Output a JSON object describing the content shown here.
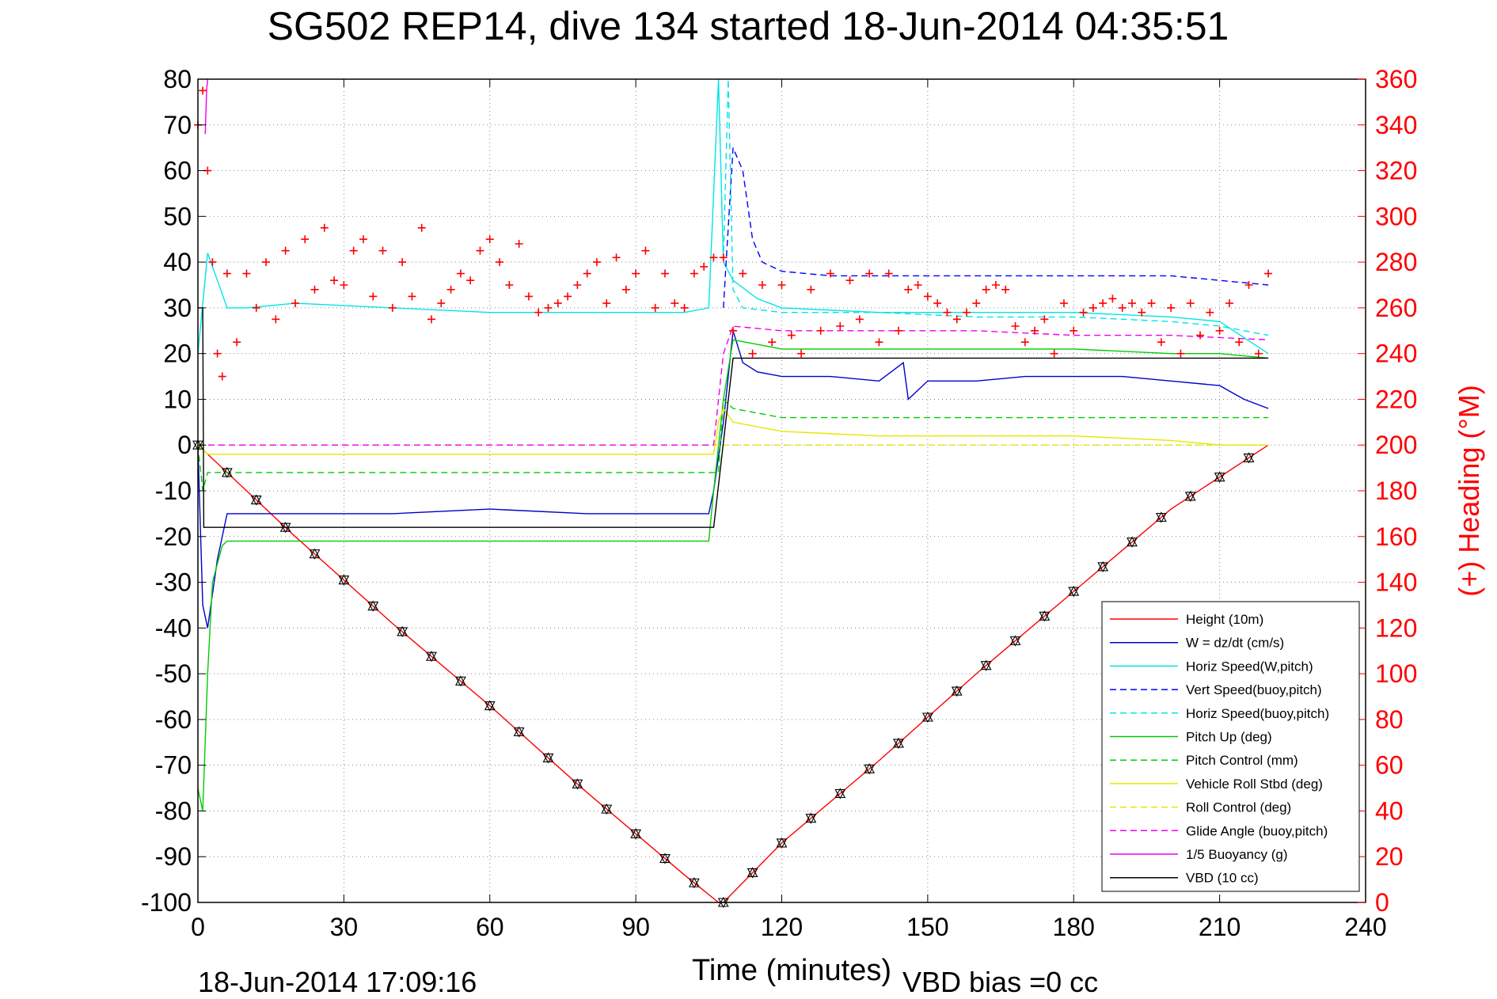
{
  "chart_data": {
    "type": "line",
    "title": "SG502 REP14, dive 134 started 18-Jun-2014 04:35:51",
    "xlabel": "Time (minutes)",
    "ylabel_right": "(+) Heading (°M)",
    "footer_date": "18-Jun-2014 17:09:16",
    "footer_vbd": "VBD bias =0 cc",
    "xlim": [
      0,
      240
    ],
    "ylim": [
      -100,
      80
    ],
    "ylim_right": [
      0,
      360
    ],
    "grid": true,
    "legend_position": "bottom-right",
    "xticks": [
      "0",
      "30",
      "60",
      "90",
      "120",
      "150",
      "180",
      "210",
      "240"
    ],
    "yticks_left": [
      "80",
      "70",
      "60",
      "50",
      "40",
      "30",
      "20",
      "10",
      "0",
      "-10",
      "-20",
      "-30",
      "-40",
      "-50",
      "-60",
      "-70",
      "-80",
      "-90",
      "-100"
    ],
    "yticks_right": [
      "360",
      "340",
      "320",
      "300",
      "280",
      "260",
      "240",
      "220",
      "200",
      "180",
      "160",
      "140",
      "120",
      "100",
      "80",
      "60",
      "40",
      "20",
      "0"
    ],
    "series": [
      {
        "name": "Height (10m)",
        "color": "#ff0000",
        "style": "solid",
        "x": [
          0,
          20,
          40,
          60,
          80,
          100,
          107,
          108,
          120,
          140,
          160,
          180,
          200,
          220
        ],
        "y": [
          0,
          -20,
          -39,
          -57,
          -76,
          -94,
          -100,
          -100,
          -87,
          -69,
          -50,
          -32,
          -14,
          0
        ]
      },
      {
        "name": "W = dz/dt (cm/s)",
        "color": "#0000cc",
        "style": "solid",
        "x": [
          0,
          1,
          2,
          4,
          6,
          10,
          20,
          40,
          60,
          80,
          100,
          105,
          106,
          108,
          110,
          112,
          115,
          120,
          130,
          140,
          145,
          146,
          150,
          160,
          170,
          180,
          190,
          200,
          210,
          215,
          220
        ],
        "y": [
          0,
          -35,
          -40,
          -25,
          -15,
          -15,
          -15,
          -15,
          -14,
          -15,
          -15,
          -15,
          -10,
          5,
          25,
          18,
          16,
          15,
          15,
          14,
          18,
          10,
          14,
          14,
          15,
          15,
          15,
          14,
          13,
          10,
          8
        ]
      },
      {
        "name": "Horiz Speed(W,pitch)",
        "color": "#00e5e5",
        "style": "solid",
        "x": [
          0,
          2,
          4,
          6,
          10,
          20,
          40,
          60,
          80,
          100,
          105,
          107,
          108,
          110,
          115,
          120,
          140,
          160,
          180,
          200,
          210,
          220
        ],
        "y": [
          20,
          42,
          36,
          30,
          30,
          31,
          30,
          29,
          29,
          29,
          30,
          80,
          40,
          36,
          32,
          30,
          29,
          29,
          29,
          28,
          27,
          20
        ]
      },
      {
        "name": "Vert Speed(buoy,pitch)",
        "color": "#0000ff",
        "style": "dashed",
        "x": [
          108,
          110,
          112,
          114,
          116,
          120,
          130,
          140,
          150,
          160,
          180,
          200,
          210,
          220
        ],
        "y": [
          30,
          65,
          60,
          45,
          40,
          38,
          37,
          37,
          37,
          37,
          37,
          37,
          36,
          35
        ]
      },
      {
        "name": "Horiz Speed(buoy,pitch)",
        "color": "#00e5e5",
        "style": "dashed",
        "x": [
          108,
          109,
          110,
          112,
          120,
          140,
          160,
          180,
          200,
          210,
          220
        ],
        "y": [
          40,
          80,
          34,
          30,
          29,
          29,
          28,
          28,
          27,
          26,
          24
        ]
      },
      {
        "name": "Pitch Up (deg)",
        "color": "#00cc00",
        "style": "solid",
        "x": [
          0,
          1,
          2,
          3,
          5,
          6,
          10,
          20,
          40,
          60,
          80,
          100,
          105,
          106,
          108,
          110,
          115,
          120,
          140,
          160,
          180,
          200,
          210,
          220
        ],
        "y": [
          -75,
          -80,
          -50,
          -30,
          -22,
          -21,
          -21,
          -21,
          -21,
          -21,
          -21,
          -21,
          -21,
          -10,
          10,
          23,
          22,
          21,
          21,
          21,
          21,
          20,
          20,
          19
        ]
      },
      {
        "name": "Pitch Control (mm)",
        "color": "#00cc00",
        "style": "dashed",
        "x": [
          0,
          1,
          2,
          6,
          40,
          60,
          80,
          100,
          105,
          107,
          108,
          110,
          115,
          120,
          140,
          160,
          180,
          200,
          220
        ],
        "y": [
          0,
          -10,
          -6,
          -6,
          -6,
          -6,
          -6,
          -6,
          -6,
          -6,
          10,
          8,
          7,
          6,
          6,
          6,
          6,
          6,
          6
        ]
      },
      {
        "name": "Vehicle Roll Stbd (deg)",
        "color": "#e6e600",
        "style": "solid",
        "x": [
          0,
          2,
          4,
          10,
          20,
          40,
          60,
          80,
          100,
          106,
          107,
          108,
          110,
          120,
          140,
          160,
          180,
          200,
          210,
          220
        ],
        "y": [
          0,
          -2,
          -2,
          -2,
          -2,
          -2,
          -2,
          -2,
          -2,
          -2,
          5,
          8,
          5,
          3,
          2,
          2,
          2,
          1,
          0,
          0
        ]
      },
      {
        "name": "Roll Control (deg)",
        "color": "#e6e600",
        "style": "dashed",
        "x": [
          0,
          5,
          20,
          40,
          60,
          80,
          100,
          108,
          120,
          140,
          160,
          180,
          200,
          220
        ],
        "y": [
          0,
          0,
          0,
          0,
          0,
          0,
          0,
          0,
          0,
          0,
          0,
          0,
          0,
          0
        ]
      },
      {
        "name": "Glide Angle (buoy,pitch)",
        "color": "#ee00ee",
        "style": "dashed",
        "x": [
          0,
          20,
          40,
          60,
          80,
          100,
          106,
          108,
          110,
          120,
          140,
          160,
          180,
          200,
          220
        ],
        "y": [
          0,
          0,
          0,
          0,
          0,
          0,
          0,
          20,
          26,
          25,
          25,
          25,
          24,
          24,
          23
        ]
      },
      {
        "name": "1/5 Buoyancy (g)",
        "color": "#ee00ee",
        "style": "solid",
        "x": [
          1.5,
          1.8,
          2
        ],
        "y": [
          68,
          78,
          80
        ]
      },
      {
        "name": "VBD (10 cc)",
        "color": "#000000",
        "style": "solid",
        "x": [
          0,
          1,
          1.2,
          5,
          20,
          40,
          60,
          80,
          100,
          106,
          110,
          120,
          140,
          160,
          180,
          200,
          220
        ],
        "y": [
          30,
          30,
          -18,
          -18,
          -18,
          -18,
          -18,
          -18,
          -18,
          -18,
          19,
          19,
          19,
          19,
          19,
          19,
          19
        ]
      },
      {
        "name": "(+) Heading (°M)",
        "color": "#ff0000",
        "style": "plus",
        "axis": "right",
        "x": [
          0,
          1,
          2,
          3,
          4,
          5,
          6,
          8,
          10,
          12,
          14,
          16,
          18,
          20,
          22,
          24,
          26,
          28,
          30,
          32,
          34,
          36,
          38,
          40,
          42,
          44,
          46,
          48,
          50,
          52,
          54,
          56,
          58,
          60,
          62,
          64,
          66,
          68,
          70,
          72,
          74,
          76,
          78,
          80,
          82,
          84,
          86,
          88,
          90,
          92,
          94,
          96,
          98,
          100,
          102,
          104,
          106,
          108,
          110,
          112,
          114,
          116,
          118,
          120,
          122,
          124,
          126,
          128,
          130,
          132,
          134,
          136,
          138,
          140,
          142,
          144,
          146,
          148,
          150,
          152,
          154,
          156,
          158,
          160,
          162,
          164,
          166,
          168,
          170,
          172,
          174,
          176,
          178,
          180,
          182,
          184,
          186,
          188,
          190,
          192,
          194,
          196,
          198,
          200,
          202,
          204,
          206,
          208,
          210,
          212,
          214,
          216,
          218,
          220
        ],
        "y": [
          340,
          355,
          320,
          280,
          240,
          230,
          275,
          245,
          275,
          260,
          280,
          255,
          285,
          262,
          290,
          268,
          295,
          272,
          270,
          285,
          290,
          265,
          285,
          260,
          280,
          265,
          295,
          255,
          262,
          268,
          275,
          272,
          285,
          290,
          280,
          270,
          288,
          265,
          258,
          260,
          262,
          265,
          270,
          275,
          280,
          262,
          282,
          268,
          275,
          285,
          260,
          275,
          262,
          260,
          275,
          278,
          282,
          282,
          250,
          275,
          240,
          270,
          245,
          270,
          248,
          240,
          268,
          250,
          275,
          252,
          272,
          255,
          275,
          245,
          275,
          250,
          268,
          270,
          265,
          262,
          258,
          255,
          258,
          262,
          268,
          270,
          268,
          252,
          245,
          250,
          255,
          240,
          262,
          250,
          258,
          260,
          262,
          264,
          260,
          262,
          258,
          262,
          245,
          260,
          240,
          262,
          248,
          258,
          250,
          262,
          245,
          270,
          240,
          275
        ]
      }
    ]
  }
}
